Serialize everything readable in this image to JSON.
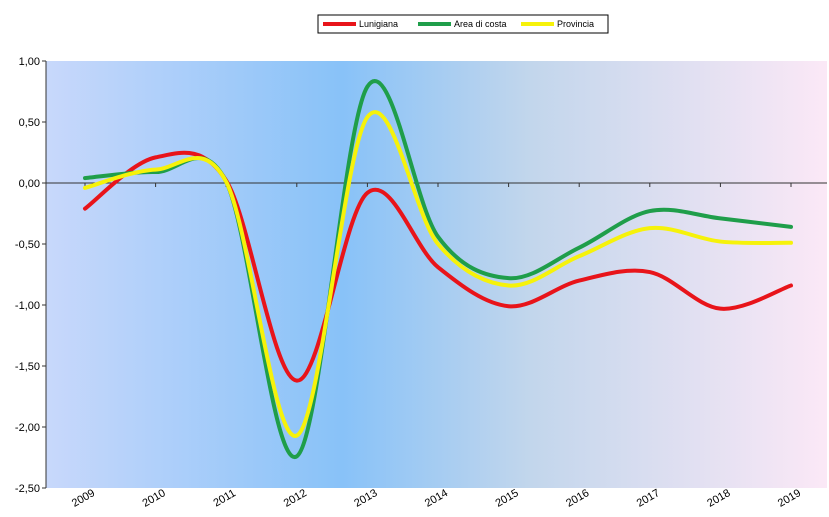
{
  "chart_data": {
    "type": "line",
    "title": "",
    "xlabel": "",
    "ylabel": "",
    "x": [
      "2009",
      "2010",
      "2011",
      "2012",
      "2013",
      "2014",
      "2015",
      "2016",
      "2017",
      "2018",
      "2019"
    ],
    "ylim": [
      -2.5,
      1.0
    ],
    "ytick_values": [
      1.0,
      0.5,
      0.0,
      -0.5,
      -1.0,
      -1.5,
      -2.0,
      -2.5
    ],
    "ytick_labels": [
      "1,00",
      "0,50",
      "0,00",
      "-0,50",
      "-1,00",
      "-1,50",
      "-2,00",
      "-2,50"
    ],
    "grid": false,
    "legend_position": "top-center",
    "background_gradient": [
      "#c8d8fb",
      "#88c2f8",
      "#c2d6ec",
      "#fbe8f6"
    ],
    "series": [
      {
        "name": "Lunigiana",
        "color": "#e8141a",
        "values": [
          -0.21,
          0.21,
          0.02,
          -1.62,
          -0.08,
          -0.69,
          -1.01,
          -0.8,
          -0.73,
          -1.03,
          -0.84
        ]
      },
      {
        "name": "Area di costa",
        "color": "#1f9e4a",
        "values": [
          0.04,
          0.09,
          0.01,
          -2.24,
          0.79,
          -0.44,
          -0.78,
          -0.53,
          -0.23,
          -0.29,
          -0.36
        ]
      },
      {
        "name": "Provincia",
        "color": "#f6f20a",
        "values": [
          -0.04,
          0.11,
          0.01,
          -2.07,
          0.54,
          -0.5,
          -0.84,
          -0.6,
          -0.37,
          -0.48,
          -0.49
        ]
      }
    ]
  }
}
